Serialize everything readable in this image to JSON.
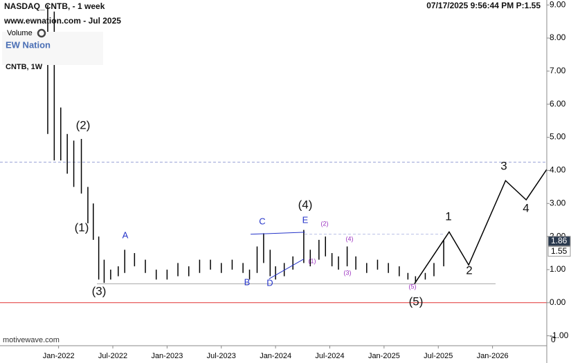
{
  "chart_data": {
    "type": "ohlc",
    "title": "NASDAQ_CNTB, - 1 week",
    "subtitle": "www.ewnation.com  - Jul 2025",
    "volume_label": "Volume",
    "logo": "EW Nation",
    "symbol_label": "CNTB, 1W",
    "timestamp": "07/17/2025 9:56:44 PM  P:1.55",
    "watermark": "motivewave.com",
    "y_axis_edge_label": "0",
    "color": "#000000",
    "x": [
      2021.9,
      2021.96,
      2022.02,
      2022.08,
      2022.14,
      2022.21,
      2022.27,
      2022.32,
      2022.37,
      2022.42,
      2022.48,
      2022.55,
      2022.61,
      2022.7,
      2022.8,
      2022.9,
      2023.0,
      2023.1,
      2023.2,
      2023.3,
      2023.4,
      2023.5,
      2023.6,
      2023.7,
      2023.76,
      2023.83,
      2023.89,
      2023.95,
      2024.0,
      2024.08,
      2024.16,
      2024.26,
      2024.32,
      2024.4,
      2024.46,
      2024.52,
      2024.58,
      2024.66,
      2024.74,
      2024.84,
      2024.94,
      2025.04,
      2025.14,
      2025.22,
      2025.29,
      2025.38,
      2025.46,
      2025.55
    ],
    "high": [
      9.0,
      8.8,
      5.9,
      5.1,
      4.9,
      4.95,
      3.5,
      3.0,
      2.0,
      1.3,
      1.0,
      1.1,
      1.6,
      1.5,
      1.3,
      1.0,
      1.0,
      1.2,
      1.1,
      1.3,
      1.3,
      1.2,
      1.3,
      1.2,
      1.0,
      1.7,
      2.1,
      1.6,
      1.1,
      1.2,
      1.4,
      2.2,
      1.6,
      1.9,
      2.0,
      1.5,
      1.4,
      1.7,
      1.4,
      1.2,
      1.3,
      1.2,
      1.1,
      0.9,
      0.8,
      0.9,
      1.2,
      1.9
    ],
    "low": [
      5.1,
      4.3,
      4.3,
      3.9,
      3.5,
      3.3,
      2.4,
      1.9,
      0.7,
      0.6,
      0.7,
      0.8,
      0.9,
      1.1,
      0.9,
      0.7,
      0.7,
      0.8,
      0.8,
      0.9,
      1.0,
      0.9,
      1.0,
      0.9,
      0.7,
      0.9,
      1.2,
      0.8,
      0.7,
      0.8,
      1.0,
      1.2,
      1.1,
      1.3,
      1.4,
      1.1,
      1.0,
      1.1,
      1.0,
      0.9,
      1.0,
      0.9,
      0.8,
      0.7,
      0.6,
      0.7,
      0.8,
      1.1
    ],
    "projection": {
      "x": [
        2025.28,
        2025.6,
        2025.78,
        2026.12,
        2026.31,
        2026.5
      ],
      "values": [
        0.57,
        2.14,
        1.14,
        3.69,
        3.11,
        4.03
      ],
      "color": "#000000"
    },
    "reference_lines": [
      {
        "value": 4.25,
        "color": "#9aa3d6",
        "dashed": true
      },
      {
        "value": 2.07,
        "color": "#b7bde6",
        "dashed": true
      },
      {
        "value": 0.57,
        "color": "#aaaaaa",
        "dashed": false
      },
      {
        "value": 0,
        "color": "#e03030",
        "dashed": false
      }
    ],
    "price_markers": [
      {
        "value": 1.86,
        "label": "1.86",
        "color": "#2b3a4f"
      },
      {
        "value": 1.55,
        "label": "1.55",
        "color": "#ffffff"
      }
    ],
    "wave_labels": [
      "(1)",
      "(2)",
      "(3)",
      "(4)",
      "(5)",
      "1",
      "2",
      "3",
      "4"
    ],
    "abc_labels": [
      "A",
      "B",
      "C",
      "D",
      "E"
    ],
    "sub_labels": [
      "(1)",
      "(2)",
      "(3)",
      "(4)",
      "(5)"
    ],
    "xlim": [
      2021.46,
      2026.5
    ],
    "ylim": [
      -1.3,
      9.15
    ],
    "xticks": [
      {
        "value": 2022.0,
        "label": "Jan-2022"
      },
      {
        "value": 2022.5,
        "label": "Jul-2022"
      },
      {
        "value": 2023.0,
        "label": "Jan-2023"
      },
      {
        "value": 2023.5,
        "label": "Jul-2023"
      },
      {
        "value": 2024.0,
        "label": "Jan-2024"
      },
      {
        "value": 2024.5,
        "label": "Jul-2024"
      },
      {
        "value": 2025.0,
        "label": "Jan-2025"
      },
      {
        "value": 2025.5,
        "label": "Jul-2025"
      },
      {
        "value": 2026.0,
        "label": "Jan-2026"
      }
    ],
    "yticks": [
      {
        "value": -1,
        "label": "-1.00"
      },
      {
        "value": 0,
        "label": "0.00"
      },
      {
        "value": 1,
        "label": "1.00"
      },
      {
        "value": 2,
        "label": "2.00"
      },
      {
        "value": 3,
        "label": "3.00"
      },
      {
        "value": 4,
        "label": "4.00"
      },
      {
        "value": 5,
        "label": "5.00"
      },
      {
        "value": 6,
        "label": "6.00"
      },
      {
        "value": 7,
        "label": "7.00"
      },
      {
        "value": 8,
        "label": "8.00"
      },
      {
        "value": 9,
        "label": "9.00"
      }
    ]
  }
}
